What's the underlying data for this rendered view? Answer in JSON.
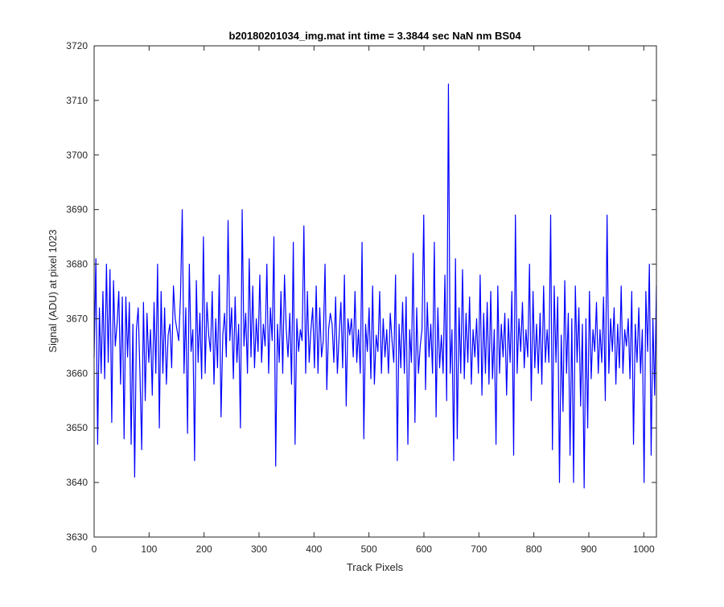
{
  "chart_data": {
    "type": "line",
    "title": "b20180201034_img.mat int time = 3.3844 sec  NaN nm BS04",
    "xlabel": "Track Pixels",
    "ylabel": "Signal (ADU) at pixel 1023",
    "xlim": [
      0,
      1023
    ],
    "ylim": [
      3630,
      3720
    ],
    "xticks": [
      0,
      100,
      200,
      300,
      400,
      500,
      600,
      700,
      800,
      900,
      1000
    ],
    "yticks": [
      3630,
      3640,
      3650,
      3660,
      3670,
      3680,
      3690,
      3700,
      3710,
      3720
    ],
    "grid": false,
    "line_color": "#0000ff",
    "series": [
      {
        "values": [
          3663,
          3681,
          3647,
          3672,
          3660,
          3675,
          3659,
          3680,
          3662,
          3679,
          3651,
          3677,
          3665,
          3669,
          3675,
          3658,
          3674,
          3648,
          3674,
          3663,
          3673,
          3647,
          3669,
          3641,
          3668,
          3672,
          3660,
          3646,
          3673,
          3655,
          3671,
          3662,
          3668,
          3656,
          3673,
          3660,
          3680,
          3650,
          3675,
          3660,
          3672,
          3658,
          3667,
          3669,
          3661,
          3676,
          3670,
          3668,
          3666,
          3674,
          3690,
          3660,
          3672,
          3649,
          3680,
          3664,
          3668,
          3644,
          3677,
          3662,
          3671,
          3659,
          3685,
          3660,
          3673,
          3667,
          3664,
          3675,
          3658,
          3670,
          3661,
          3678,
          3652,
          3667,
          3671,
          3663,
          3688,
          3666,
          3672,
          3659,
          3674,
          3662,
          3669,
          3650,
          3690,
          3665,
          3671,
          3660,
          3681,
          3663,
          3676,
          3661,
          3670,
          3664,
          3678,
          3662,
          3669,
          3665,
          3680,
          3660,
          3672,
          3666,
          3685,
          3643,
          3669,
          3662,
          3675,
          3660,
          3678,
          3668,
          3663,
          3671,
          3658,
          3684,
          3647,
          3670,
          3664,
          3668,
          3666,
          3687,
          3660,
          3675,
          3662,
          3668,
          3672,
          3661,
          3676,
          3660,
          3672,
          3663,
          3666,
          3680,
          3657,
          3668,
          3671,
          3669,
          3662,
          3674,
          3660,
          3667,
          3673,
          3661,
          3678,
          3654,
          3670,
          3667,
          3670,
          3663,
          3675,
          3662,
          3668,
          3660,
          3684,
          3648,
          3669,
          3664,
          3672,
          3659,
          3676,
          3658,
          3667,
          3664,
          3675,
          3660,
          3670,
          3663,
          3668,
          3660,
          3671,
          3666,
          3662,
          3678,
          3644,
          3669,
          3661,
          3673,
          3660,
          3674,
          3647,
          3668,
          3662,
          3682,
          3651,
          3672,
          3660,
          3665,
          3668,
          3689,
          3657,
          3673,
          3663,
          3669,
          3660,
          3684,
          3652,
          3672,
          3661,
          3667,
          3660,
          3678,
          3655,
          3713,
          3660,
          3668,
          3644,
          3681,
          3648,
          3672,
          3660,
          3679,
          3659,
          3671,
          3662,
          3674,
          3658,
          3668,
          3663,
          3670,
          3660,
          3678,
          3656,
          3671,
          3660,
          3673,
          3658,
          3675,
          3659,
          3668,
          3647,
          3676,
          3660,
          3669,
          3663,
          3671,
          3656,
          3670,
          3662,
          3675,
          3645,
          3689,
          3660,
          3670,
          3664,
          3673,
          3661,
          3668,
          3663,
          3680,
          3655,
          3675,
          3661,
          3669,
          3660,
          3671,
          3658,
          3676,
          3662,
          3668,
          3662,
          3689,
          3646,
          3676,
          3662,
          3674,
          3640,
          3667,
          3653,
          3677,
          3660,
          3671,
          3645,
          3670,
          3640,
          3676,
          3662,
          3672,
          3654,
          3669,
          3639,
          3670,
          3650,
          3675,
          3659,
          3668,
          3664,
          3673,
          3660,
          3668,
          3662,
          3674,
          3655,
          3689,
          3660,
          3670,
          3664,
          3672,
          3658,
          3669,
          3661,
          3676,
          3660,
          3668,
          3665,
          3670,
          3659,
          3675,
          3647,
          3669,
          3662,
          3672,
          3660,
          3668,
          3640,
          3675,
          3664,
          3680,
          3645,
          3670,
          3656,
          3676
        ]
      }
    ]
  }
}
